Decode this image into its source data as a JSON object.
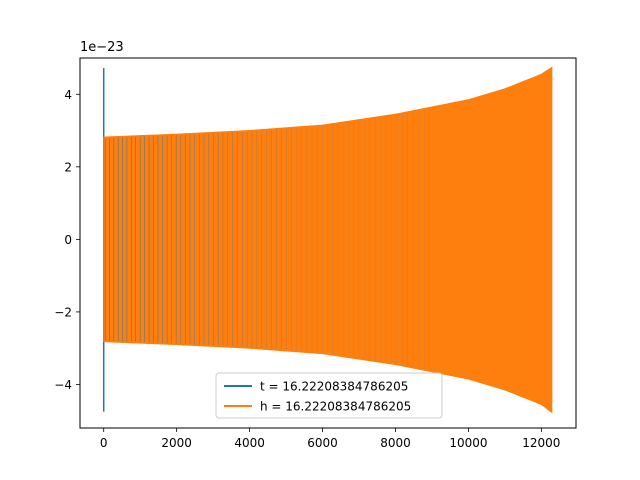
{
  "chart_data": {
    "type": "line",
    "title": "",
    "xlabel": "",
    "ylabel": "",
    "y_offset_text": "1e−23",
    "y_scale_exponent": -23,
    "xlim": [
      -650,
      12950
    ],
    "ylim": [
      -5.2,
      5.0
    ],
    "x_ticks": [
      0,
      2000,
      4000,
      6000,
      8000,
      10000,
      12000
    ],
    "x_tick_labels": [
      "0",
      "2000",
      "4000",
      "6000",
      "8000",
      "10000",
      "12000"
    ],
    "y_ticks": [
      -4,
      -2,
      0,
      2,
      4
    ],
    "y_tick_labels": [
      "−4",
      "−2",
      "0",
      "2",
      "4"
    ],
    "grid": false,
    "legend_position": "lower center",
    "series": [
      {
        "name": "t = 16.22208384786205",
        "color": "#1f77b4",
        "description_points": {
          "x": [
            0,
            0,
            0,
            10
          ],
          "y": [
            4.72,
            -4.75,
            2.8,
            -2.8
          ]
        }
      },
      {
        "name": "h = 16.22208384786205",
        "color": "#ff7f0e",
        "envelope": {
          "x": [
            0,
            2000,
            4000,
            6000,
            8000,
            10000,
            11000,
            12000,
            12288
          ],
          "upper": [
            2.82,
            2.9,
            3.0,
            3.15,
            3.45,
            3.85,
            4.15,
            4.55,
            4.74
          ],
          "lower": [
            -2.82,
            -2.9,
            -3.0,
            -3.15,
            -3.45,
            -3.85,
            -4.15,
            -4.55,
            -4.77
          ]
        }
      }
    ]
  }
}
